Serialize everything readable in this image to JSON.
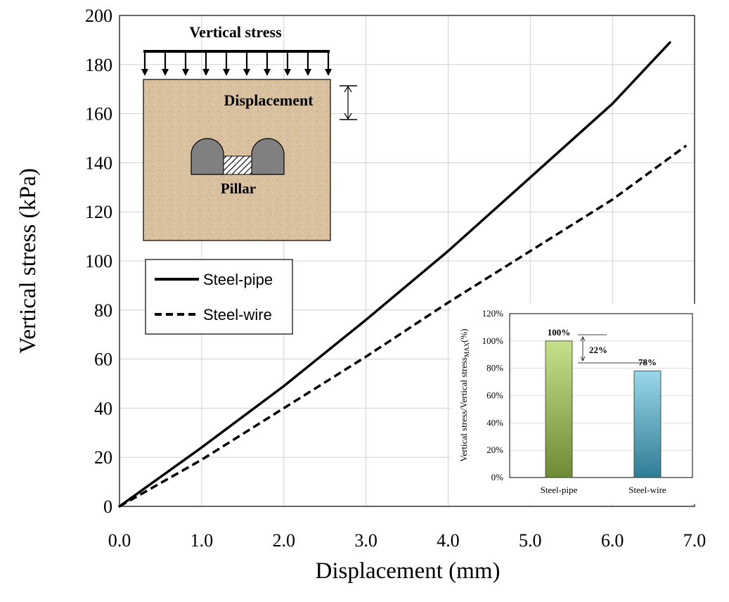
{
  "chart_data": [
    {
      "type": "line",
      "xlabel": "Displacement (mm)",
      "ylabel": "Vertical stress (kPa)",
      "xlim": [
        0,
        7
      ],
      "ylim": [
        0,
        200
      ],
      "x_ticks": [
        "0.0",
        "1.0",
        "2.0",
        "3.0",
        "4.0",
        "5.0",
        "6.0",
        "7.0"
      ],
      "y_ticks": [
        "0",
        "20",
        "40",
        "60",
        "80",
        "100",
        "120",
        "140",
        "160",
        "180",
        "200"
      ],
      "grid": true,
      "legend_position": "middle-left",
      "series": [
        {
          "name": "Steel-pipe",
          "style": "solid",
          "color": "#000000",
          "x": [
            0,
            1,
            2,
            3,
            4,
            5,
            6,
            6.7
          ],
          "y": [
            0,
            24,
            49,
            76,
            104,
            134,
            164,
            189
          ]
        },
        {
          "name": "Steel-wire",
          "style": "dashed",
          "color": "#000000",
          "x": [
            0,
            1,
            2,
            3,
            4,
            5,
            6,
            6.9
          ],
          "y": [
            0,
            19,
            40,
            61,
            83,
            104,
            125,
            147
          ]
        }
      ]
    },
    {
      "type": "bar",
      "ylabel": "Vertical stress/Vertical stress",
      "ylabel_subscript": "MAX",
      "ylabel_suffix": "(%)",
      "categories": [
        "Steel-pipe",
        "Steel-wire"
      ],
      "values": [
        100,
        78
      ],
      "value_labels": [
        "100%",
        "78%"
      ],
      "difference_label": "22%",
      "ylim": [
        0,
        120
      ],
      "y_ticks": [
        "0%",
        "20%",
        "40%",
        "60%",
        "80%",
        "100%",
        "120%"
      ],
      "bar_colors": [
        "#8fb04a",
        "#3fa2c0"
      ]
    }
  ],
  "schematic": {
    "load_label": "Vertical stress",
    "displacement_label": "Displacement",
    "pillar_label": "Pillar",
    "block_color": "#d9c09f",
    "tunnel_color": "#808080"
  }
}
